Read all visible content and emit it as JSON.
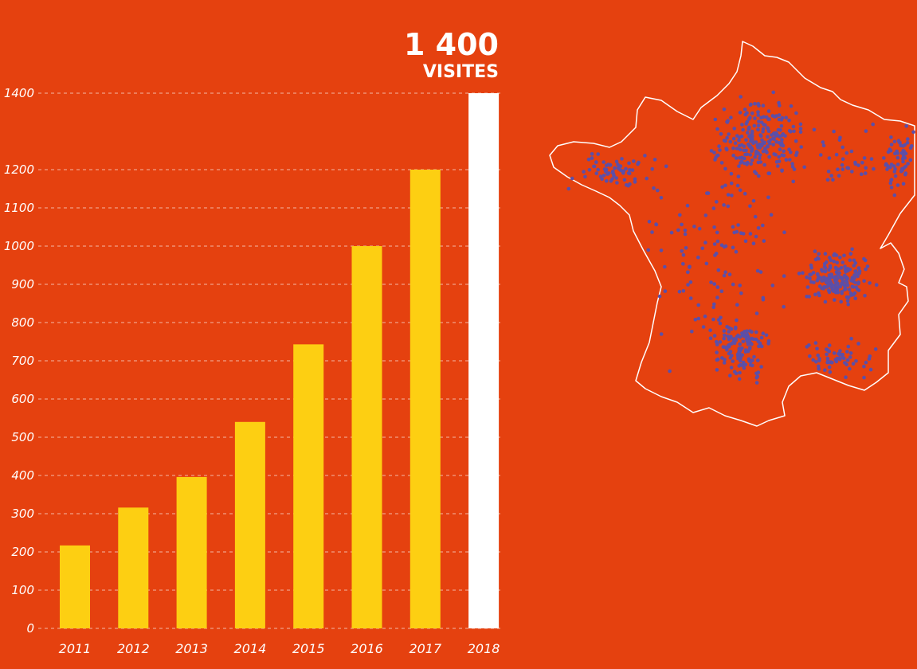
{
  "headline": {
    "value": "1 400",
    "unit": "VISITES"
  },
  "chart_data": {
    "type": "bar",
    "categories": [
      "2011",
      "2012",
      "2013",
      "2014",
      "2015",
      "2016",
      "2017",
      "2018"
    ],
    "values": [
      217,
      316,
      396,
      540,
      743,
      1000,
      1200,
      1400
    ],
    "ylim": [
      0,
      1400
    ],
    "yticks": [
      0,
      100,
      200,
      300,
      400,
      500,
      600,
      700,
      800,
      900,
      1000,
      1100,
      1200,
      1400
    ],
    "grid": true,
    "highlight_category": "2018",
    "colors": {
      "background": "#E5410F",
      "bar": "#FDCF12",
      "highlight_bar": "#FFFFFF",
      "grid": "#F2B8A4",
      "map_dots": "#5B4FA8",
      "map_outline": "#FFFFFF"
    }
  },
  "map": {
    "subject": "France",
    "icon": "france-map-dot-distribution"
  }
}
